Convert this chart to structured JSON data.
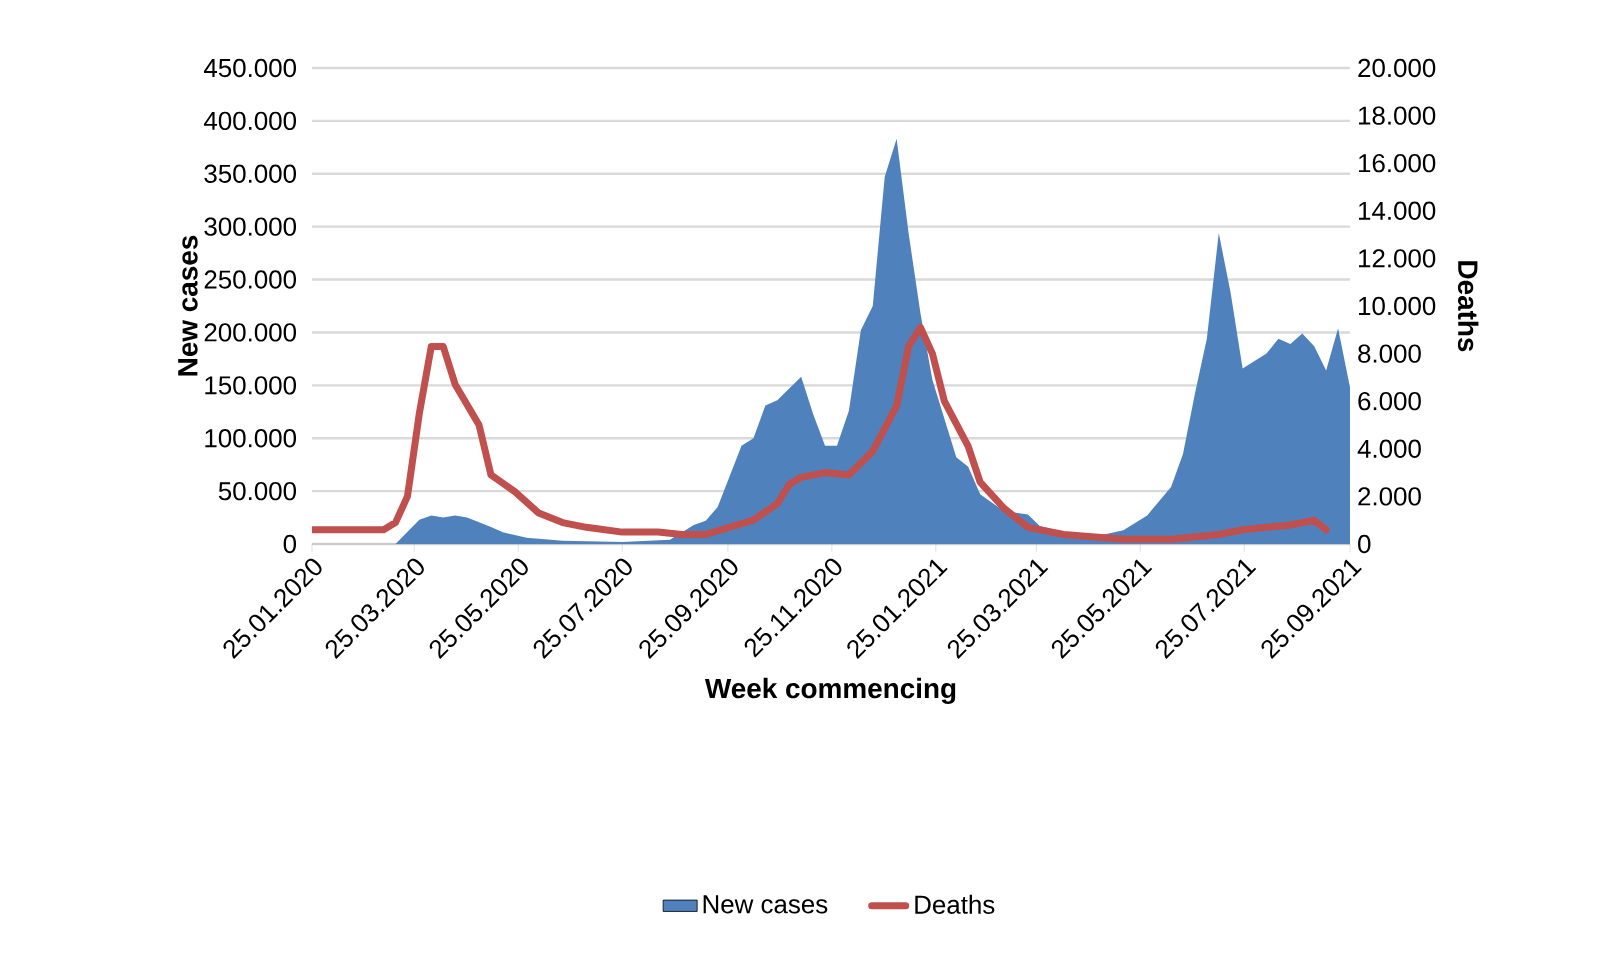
{
  "chart_data": {
    "type": "area",
    "xlabel": "Week commencing",
    "ylabel": "New cases",
    "y2label": "Deaths",
    "xlim": [
      "2020-01-25",
      "2021-09-25"
    ],
    "xticks": [
      {
        "value": "2020-01-25",
        "label": "25.01.2020"
      },
      {
        "value": "2020-03-25",
        "label": "25.03.2020"
      },
      {
        "value": "2020-05-25",
        "label": "25.05.2020"
      },
      {
        "value": "2020-07-25",
        "label": "25.07.2020"
      },
      {
        "value": "2020-09-25",
        "label": "25.09.2020"
      },
      {
        "value": "2020-11-25",
        "label": "25.11.2020"
      },
      {
        "value": "2021-01-25",
        "label": "25.01.2021"
      },
      {
        "value": "2021-03-25",
        "label": "25.03.2021"
      },
      {
        "value": "2021-05-25",
        "label": "25.05.2021"
      },
      {
        "value": "2021-07-25",
        "label": "25.07.2021"
      },
      {
        "value": "2021-09-25",
        "label": "25.09.2021"
      }
    ],
    "ylim": [
      0,
      450000
    ],
    "yticks": [
      0,
      {
        "value": 50000,
        "label": "50.000"
      },
      {
        "value": 100000,
        "label": "100.000"
      },
      {
        "value": 150000,
        "label": "150.000"
      },
      {
        "value": 200000,
        "label": "200.000"
      },
      {
        "value": 250000,
        "label": "250.000"
      },
      {
        "value": 300000,
        "label": "300.000"
      },
      {
        "value": 350000,
        "label": "350.000"
      },
      {
        "value": 400000,
        "label": "400.000"
      },
      {
        "value": 450000,
        "label": "450.000"
      }
    ],
    "y2lim": [
      0,
      20000
    ],
    "y2ticks": [
      0,
      {
        "value": 2000,
        "label": "2.000"
      },
      {
        "value": 4000,
        "label": "4.000"
      },
      {
        "value": 6000,
        "label": "6.000"
      },
      {
        "value": 8000,
        "label": "8.000"
      },
      {
        "value": 10000,
        "label": "10.000"
      },
      {
        "value": 12000,
        "label": "12.000"
      },
      {
        "value": 14000,
        "label": "14.000"
      },
      {
        "value": 16000,
        "label": "16.000"
      },
      {
        "value": 18000,
        "label": "18.000"
      },
      {
        "value": 20000,
        "label": "20.000"
      }
    ],
    "grid": "y",
    "legend": "bottom",
    "series": [
      {
        "name": "New cases",
        "color": "#4f81bd",
        "x": [
          "2020-01-25",
          "2020-03-14",
          "2020-03-28",
          "2020-04-04",
          "2020-04-11",
          "2020-04-18",
          "2020-04-25",
          "2020-05-09",
          "2020-05-16",
          "2020-05-30",
          "2020-06-20",
          "2020-07-25",
          "2020-08-22",
          "2020-09-05",
          "2020-09-12",
          "2020-09-19",
          "2020-10-03",
          "2020-10-10",
          "2020-10-17",
          "2020-10-24",
          "2020-10-31",
          "2020-11-07",
          "2020-11-14",
          "2020-11-21",
          "2020-11-28",
          "2020-12-05",
          "2020-12-12",
          "2020-12-19",
          "2020-12-26",
          "2021-01-02",
          "2021-01-09",
          "2021-01-16",
          "2021-01-23",
          "2021-02-06",
          "2021-02-13",
          "2021-02-20",
          "2021-03-06",
          "2021-03-20",
          "2021-03-27",
          "2021-04-10",
          "2021-05-01",
          "2021-05-15",
          "2021-05-29",
          "2021-06-12",
          "2021-06-19",
          "2021-06-26",
          "2021-07-03",
          "2021-07-10",
          "2021-07-17",
          "2021-07-24",
          "2021-08-07",
          "2021-08-14",
          "2021-08-21",
          "2021-08-28",
          "2021-09-04",
          "2021-09-11",
          "2021-09-18",
          "2021-09-25"
        ],
        "values": [
          0,
          0,
          23000,
          27000,
          25000,
          27000,
          25000,
          16000,
          11000,
          6000,
          3000,
          2000,
          4000,
          18000,
          22000,
          35000,
          93000,
          100000,
          131000,
          136000,
          147000,
          158000,
          123000,
          93000,
          93000,
          126000,
          202000,
          225000,
          347000,
          383000,
          294000,
          218000,
          155000,
          82000,
          73000,
          47000,
          31000,
          28000,
          17000,
          11000,
          8000,
          13000,
          27000,
          54000,
          85000,
          142000,
          194000,
          294000,
          237000,
          166000,
          180000,
          194000,
          189000,
          199000,
          187000,
          164000,
          204000,
          148000
        ]
      },
      {
        "name": "Deaths",
        "type": "line",
        "axis": "y2",
        "color": "#c0504d",
        "x": [
          "2020-01-25",
          "2020-03-07",
          "2020-03-14",
          "2020-03-21",
          "2020-03-28",
          "2020-04-04",
          "2020-04-11",
          "2020-04-18",
          "2020-05-02",
          "2020-05-09",
          "2020-05-23",
          "2020-06-06",
          "2020-06-20",
          "2020-07-04",
          "2020-07-25",
          "2020-08-15",
          "2020-08-29",
          "2020-09-12",
          "2020-09-26",
          "2020-10-10",
          "2020-10-24",
          "2020-10-31",
          "2020-11-07",
          "2020-11-21",
          "2020-12-05",
          "2020-12-19",
          "2021-01-02",
          "2021-01-09",
          "2021-01-16",
          "2021-01-23",
          "2021-01-30",
          "2021-02-13",
          "2021-02-20",
          "2021-03-06",
          "2021-03-20",
          "2021-04-10",
          "2021-05-15",
          "2021-06-12",
          "2021-07-10",
          "2021-07-24",
          "2021-08-07",
          "2021-08-21",
          "2021-09-04",
          "2021-09-11"
        ],
        "values": [
          600,
          600,
          900,
          2000,
          5500,
          8300,
          8300,
          6700,
          5000,
          2900,
          2200,
          1300,
          900,
          700,
          500,
          500,
          400,
          400,
          700,
          1000,
          1700,
          2500,
          2800,
          3000,
          2900,
          3900,
          5800,
          8300,
          9100,
          8000,
          6000,
          4100,
          2600,
          1500,
          700,
          400,
          200,
          200,
          400,
          600,
          700,
          800,
          1000,
          600
        ]
      }
    ]
  }
}
